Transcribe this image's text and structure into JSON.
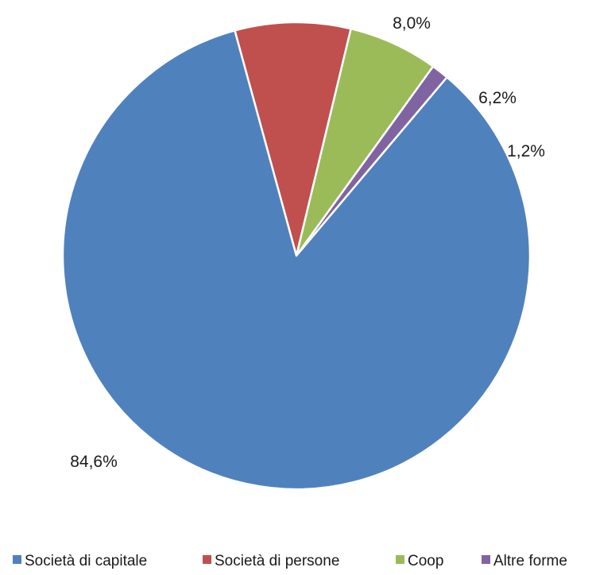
{
  "chart_data": {
    "type": "pie",
    "categories": [
      "Società di capitale",
      "Società di persone",
      "Coop",
      "Altre forme"
    ],
    "values": [
      84.6,
      8.0,
      6.2,
      1.2
    ],
    "labels": [
      "84,6%",
      "8,0%",
      "6,2%",
      "1,2%"
    ],
    "colors": [
      "#4F81BD",
      "#C0504D",
      "#9BBB59",
      "#8064A2"
    ],
    "legend_position": "bottom"
  }
}
